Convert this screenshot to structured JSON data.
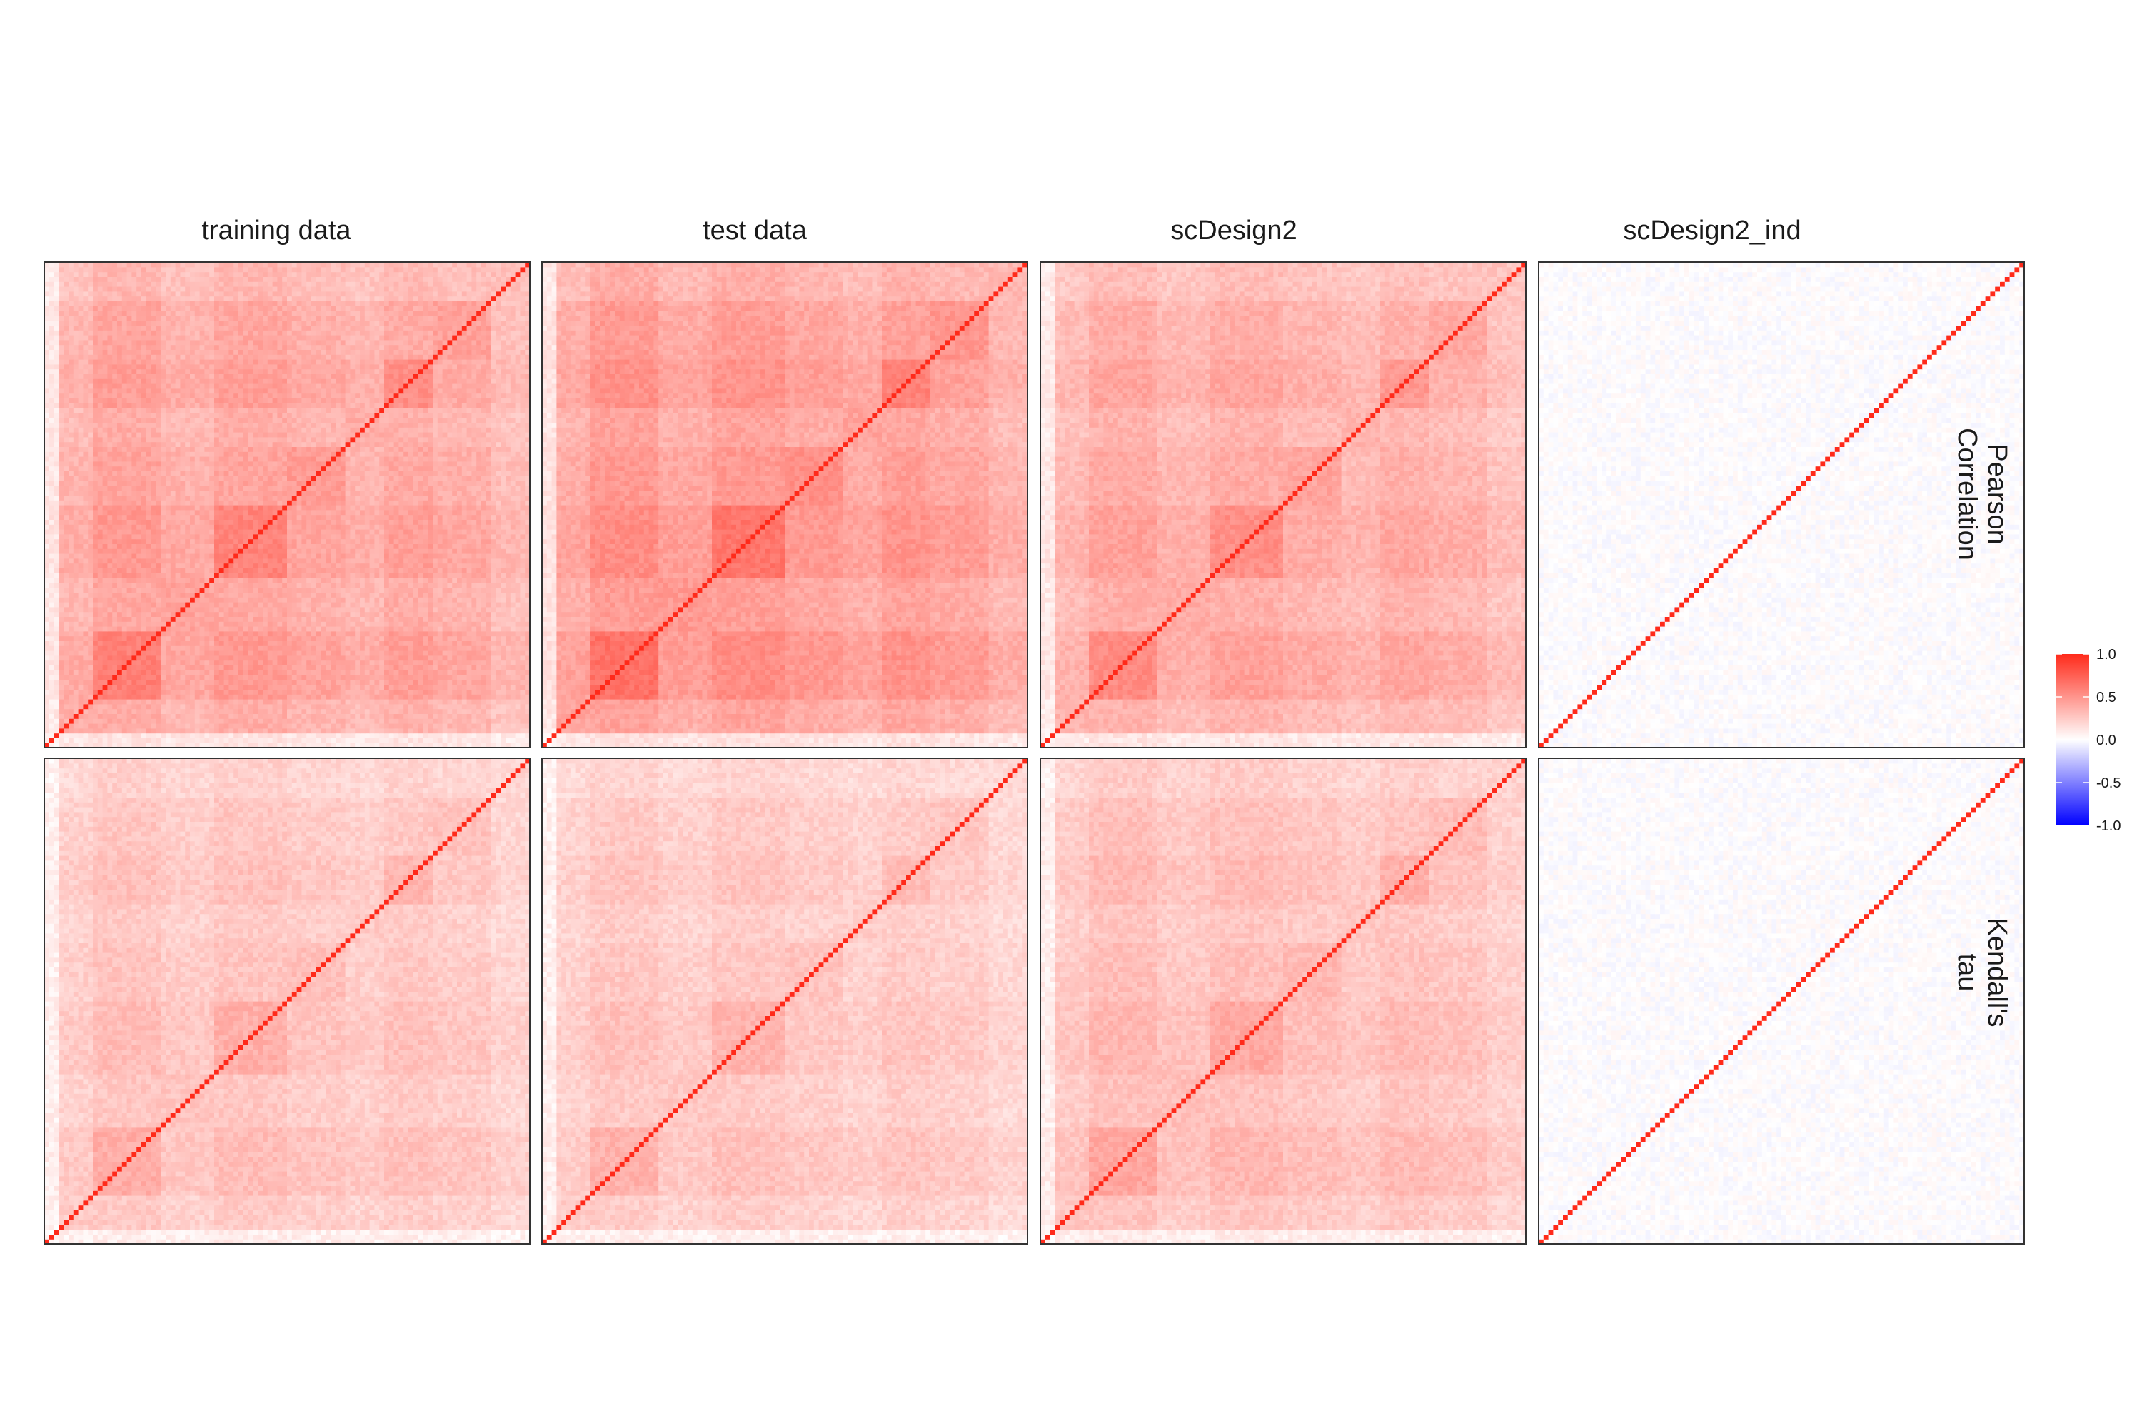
{
  "chart_data": {
    "type": "heatmap",
    "title": "",
    "matrix_size": 100,
    "columns": [
      "training data",
      "test data",
      "scDesign2",
      "scDesign2_ind"
    ],
    "rows": [
      {
        "label_lines": [
          "Pearson",
          "Correlation"
        ]
      },
      {
        "label_lines": [
          "Kendall's",
          "tau"
        ]
      }
    ],
    "block_structure": {
      "gene_groups": [
        {
          "range": [
            0,
            3
          ],
          "level": 0.05
        },
        {
          "range": [
            3,
            10
          ],
          "level": 0.45
        },
        {
          "range": [
            10,
            24
          ],
          "level": 0.7
        },
        {
          "range": [
            24,
            35
          ],
          "level": 0.5
        },
        {
          "range": [
            35,
            50
          ],
          "level": 0.68
        },
        {
          "range": [
            50,
            62
          ],
          "level": 0.55
        },
        {
          "range": [
            62,
            70
          ],
          "level": 0.45
        },
        {
          "range": [
            70,
            80
          ],
          "level": 0.62
        },
        {
          "range": [
            80,
            92
          ],
          "level": 0.52
        },
        {
          "range": [
            92,
            100
          ],
          "level": 0.35
        }
      ],
      "pearson_scale": {
        "training data": 0.85,
        "test data": 0.95,
        "scDesign2": 0.78,
        "scDesign2_ind": 0.0
      },
      "kendall_scale": {
        "training data": 0.55,
        "test data": 0.52,
        "scDesign2": 0.6,
        "scDesign2_ind": 0.0
      },
      "independent_noise": 0.05
    },
    "diagonal_value": 1.0,
    "color_scale": {
      "low": "#0000ff",
      "mid": "#ffffff",
      "high": "#ff2a1a",
      "limits": [
        -1.0,
        1.0
      ],
      "ticks": [
        "1.0",
        "0.5",
        "0.0",
        "-0.5",
        "-1.0"
      ]
    },
    "legend_placement": "right",
    "grid": false
  }
}
